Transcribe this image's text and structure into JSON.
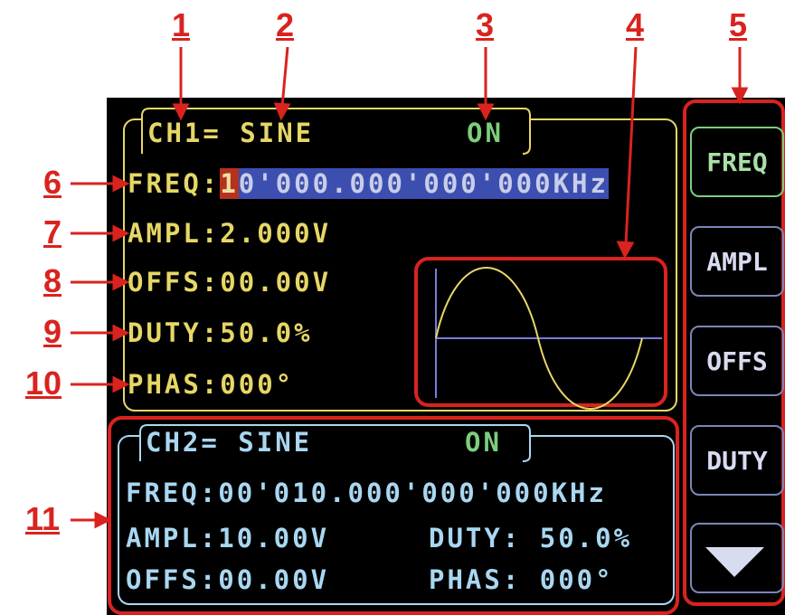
{
  "callouts": [
    "1",
    "2",
    "3",
    "4",
    "5",
    "6",
    "7",
    "8",
    "9",
    "10",
    "11"
  ],
  "ch1": {
    "title": "CH1= SINE",
    "status": "ON",
    "freq_label": "FREQ:",
    "freq_cursor": "1",
    "freq_rest": "0'000.000'000'000KHz",
    "ampl": "AMPL:2.000V",
    "offs": "OFFS:00.00V",
    "duty": "DUTY:50.0%",
    "phas": "PHAS:000°"
  },
  "ch2": {
    "title": "CH2= SINE",
    "status": "ON",
    "freq": "FREQ:00'010.000'000'000KHz",
    "ampl": "AMPL:10.00V",
    "duty": "DUTY: 50.0%",
    "offs": "OFFS:00.00V",
    "phas": "PHAS: 000°"
  },
  "menu": [
    "FREQ",
    "AMPL",
    "OFFS",
    "DUTY"
  ]
}
